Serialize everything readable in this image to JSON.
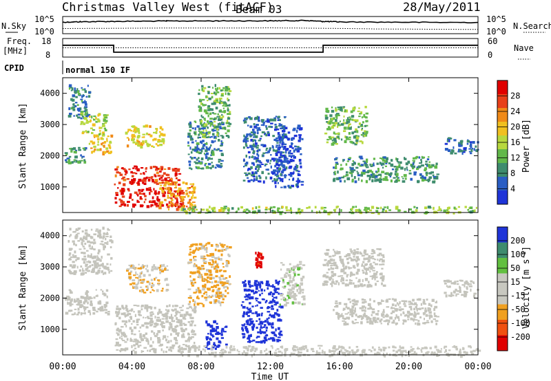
{
  "header": {
    "station": "Christmas Valley West (fitACF)",
    "beam": "Beam 03",
    "date": "28/May/2011"
  },
  "strip_labels": {
    "nsky": "N.Sky",
    "nsearch": "N.Search",
    "freq_line1": "Freq.",
    "freq_line2": "[MHz]",
    "nave": "Nave",
    "cpid": "CPID",
    "cpid_value": "normal 150 IF",
    "nsky_ticks": [
      "10^5",
      "10^0"
    ],
    "nsearch_ticks": [
      "10^5",
      "10^0"
    ],
    "freq_ticks": [
      "18",
      "8"
    ],
    "nave_ticks": [
      "60",
      "0"
    ]
  },
  "colors": {
    "power_scale": [
      "#1f34d8",
      "#2a5ec4",
      "#3e8c6e",
      "#62b84a",
      "#b8d83e",
      "#f0c020",
      "#f08a18",
      "#e8401a",
      "#e00000"
    ],
    "velocity_scale": [
      "#e00000",
      "#f05010",
      "#f0a020",
      "#c8c8c0",
      "#c8c8c0",
      "#62c040",
      "#3e8c6e",
      "#1f34d8"
    ],
    "ground_scatter": "#c4c4bc"
  },
  "chart_data": [
    {
      "type": "line",
      "title": "N.Sky / N.Search",
      "x_range_hours": [
        0,
        24
      ],
      "yscale": "log",
      "ylim": [
        1,
        100000
      ],
      "series": [
        {
          "name": "N.Sky",
          "x": [
            0,
            1,
            3,
            6,
            9,
            12,
            14,
            15,
            16,
            20,
            24
          ],
          "values": [
            3000,
            4500,
            6000,
            8000,
            9000,
            9500,
            12000,
            6000,
            4000,
            3000,
            2500
          ]
        },
        {
          "name": "N.Search",
          "x": [
            0,
            3,
            6,
            9,
            12,
            15,
            18,
            21,
            24
          ],
          "values": [
            20,
            25,
            30,
            30,
            35,
            25,
            15,
            12,
            10
          ]
        }
      ]
    },
    {
      "type": "line",
      "title": "Freq. / Nave",
      "x_range_hours": [
        0,
        24
      ],
      "series": [
        {
          "name": "Freq. [MHz]",
          "x": [
            0,
            2.95,
            2.95,
            15.05,
            15.05,
            24
          ],
          "values": [
            14.6,
            14.6,
            10.2,
            10.2,
            14.6,
            14.6
          ]
        },
        {
          "name": "Nave",
          "x": [
            0,
            24
          ],
          "values": [
            30,
            30
          ]
        }
      ],
      "ylim_freq": [
        8,
        18
      ],
      "ylim_nave": [
        0,
        60
      ]
    },
    {
      "type": "heatmap",
      "title": "Power",
      "xlabel": "Time UT",
      "ylabel": "Slant Range [km]",
      "xlim": [
        0,
        24
      ],
      "ylim": [
        180,
        4500
      ],
      "colorbar_label": "Power [dB]",
      "colorbar_ticks": [
        "28",
        "24",
        "20",
        "16",
        "12",
        "8",
        "4"
      ],
      "colorbar_range": [
        0,
        32
      ],
      "regions": [
        {
          "t": [
            0.3,
            1.5
          ],
          "r": [
            3200,
            4300
          ],
          "v": 8
        },
        {
          "t": [
            1.0,
            2.5
          ],
          "r": [
            2700,
            3400
          ],
          "v": 16
        },
        {
          "t": [
            1.5,
            2.8
          ],
          "r": [
            2100,
            2700
          ],
          "v": 20
        },
        {
          "t": [
            0.1,
            1.3
          ],
          "r": [
            1800,
            2300
          ],
          "v": 10
        },
        {
          "t": [
            2.95,
            6.7
          ],
          "r": [
            1100,
            1700
          ],
          "v": 28
        },
        {
          "t": [
            3.0,
            6.9
          ],
          "r": [
            400,
            1000
          ],
          "v": 30
        },
        {
          "t": [
            5.5,
            7.6
          ],
          "r": [
            250,
            1200
          ],
          "v": 22
        },
        {
          "t": [
            3.6,
            5.8
          ],
          "r": [
            2300,
            3000
          ],
          "v": 18
        },
        {
          "t": [
            7.2,
            9.2
          ],
          "r": [
            1600,
            3200
          ],
          "v": 8
        },
        {
          "t": [
            7.8,
            9.6
          ],
          "r": [
            2600,
            4300
          ],
          "v": 12
        },
        {
          "t": [
            10.4,
            12.8
          ],
          "r": [
            1200,
            3300
          ],
          "v": 6
        },
        {
          "t": [
            12.2,
            13.8
          ],
          "r": [
            1000,
            3000
          ],
          "v": 4
        },
        {
          "t": [
            15.1,
            17.5
          ],
          "r": [
            2400,
            3600
          ],
          "v": 12
        },
        {
          "t": [
            15.6,
            21.6
          ],
          "r": [
            1200,
            2000
          ],
          "v": 10
        },
        {
          "t": [
            22.0,
            24.0
          ],
          "r": [
            2100,
            2600
          ],
          "v": 6
        },
        {
          "t": [
            6.8,
            24.0
          ],
          "r": [
            180,
            400
          ],
          "v": 14
        }
      ]
    },
    {
      "type": "heatmap",
      "title": "Velocity",
      "xlabel": "Time UT",
      "ylabel": "Slant Range [km]",
      "xlim": [
        0,
        24
      ],
      "ylim": [
        180,
        4500
      ],
      "colorbar_label": "Velocity [m s^-1]",
      "colorbar_ticks": [
        "200",
        "100",
        "50",
        "15",
        "-15",
        "-50",
        "-100",
        "-200"
      ],
      "colorbar_range": [
        -250,
        250
      ],
      "regions": [
        {
          "t": [
            0.3,
            2.8
          ],
          "r": [
            2800,
            4300
          ],
          "v": "gs"
        },
        {
          "t": [
            0.1,
            2.6
          ],
          "r": [
            1500,
            2300
          ],
          "v": "gs"
        },
        {
          "t": [
            3.0,
            7.6
          ],
          "r": [
            300,
            1800
          ],
          "v": "gs"
        },
        {
          "t": [
            3.6,
            6.0
          ],
          "r": [
            2200,
            3100
          ],
          "v": -60
        },
        {
          "t": [
            7.2,
            9.6
          ],
          "r": [
            1800,
            3800
          ],
          "v": -70
        },
        {
          "t": [
            8.2,
            9.4
          ],
          "r": [
            400,
            1300
          ],
          "v": 220
        },
        {
          "t": [
            10.3,
            12.6
          ],
          "r": [
            600,
            2600
          ],
          "v": 220
        },
        {
          "t": [
            11.1,
            11.5
          ],
          "r": [
            3000,
            3500
          ],
          "v": -210
        },
        {
          "t": [
            12.5,
            13.9
          ],
          "r": [
            1800,
            3200
          ],
          "v": 40
        },
        {
          "t": [
            15.0,
            18.5
          ],
          "r": [
            2400,
            3600
          ],
          "v": "gs"
        },
        {
          "t": [
            15.6,
            21.6
          ],
          "r": [
            1200,
            2000
          ],
          "v": "gs"
        },
        {
          "t": [
            22.0,
            24.0
          ],
          "r": [
            2100,
            2600
          ],
          "v": "gs"
        },
        {
          "t": [
            6.8,
            24.0
          ],
          "r": [
            180,
            500
          ],
          "v": 30
        }
      ]
    }
  ],
  "axes": {
    "x_ticks": [
      "00:00",
      "04:00",
      "08:00",
      "12:00",
      "16:00",
      "20:00",
      "00:00"
    ],
    "y_ticks": [
      "1000",
      "2000",
      "3000",
      "4000"
    ],
    "xlabel": "Time UT",
    "ylabel": "Slant Range [km]",
    "power_label": "Power [dB]",
    "velocity_label": "Velocity [m s",
    "velocity_label_exp": "-1",
    "velocity_label_end": "]"
  }
}
